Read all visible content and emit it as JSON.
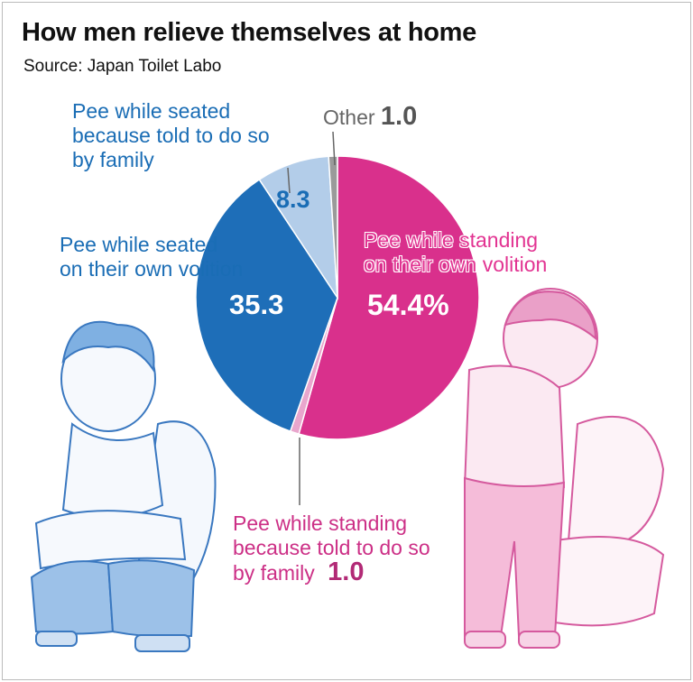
{
  "header": {
    "title": "How men relieve themselves at home",
    "source": "Source: Japan Toilet Labo"
  },
  "chart_data": {
    "type": "pie",
    "title": "How men relieve themselves at home",
    "categories": [
      "Pee while standing on their own volition",
      "Pee while standing because told to do so by family",
      "Pee while seated on their own volition",
      "Pee while seated because told to do so by family",
      "Other"
    ],
    "values": [
      54.4,
      1.0,
      35.3,
      8.3,
      1.0
    ],
    "colors": [
      "#d9308c",
      "#e9a6cd",
      "#1e6eb8",
      "#b3cde9",
      "#9a9a9a"
    ]
  },
  "labels": {
    "standing_own_line1": "Pee while standing",
    "standing_own_line2": "on their own volition",
    "standing_own_value": "54.4%",
    "seated_own_line1": "Pee while seated",
    "seated_own_line2": "on their own volition",
    "seated_own_value": "35.3",
    "seated_family_line1": "Pee while seated",
    "seated_family_line2": "because told to do so",
    "seated_family_line3": "by family",
    "seated_family_value": "8.3",
    "other_label": "Other",
    "other_value": "1.0",
    "standing_family_line1": "Pee while standing",
    "standing_family_line2": "because told to do so",
    "standing_family_line3": "by family",
    "standing_family_value": "1.0"
  }
}
